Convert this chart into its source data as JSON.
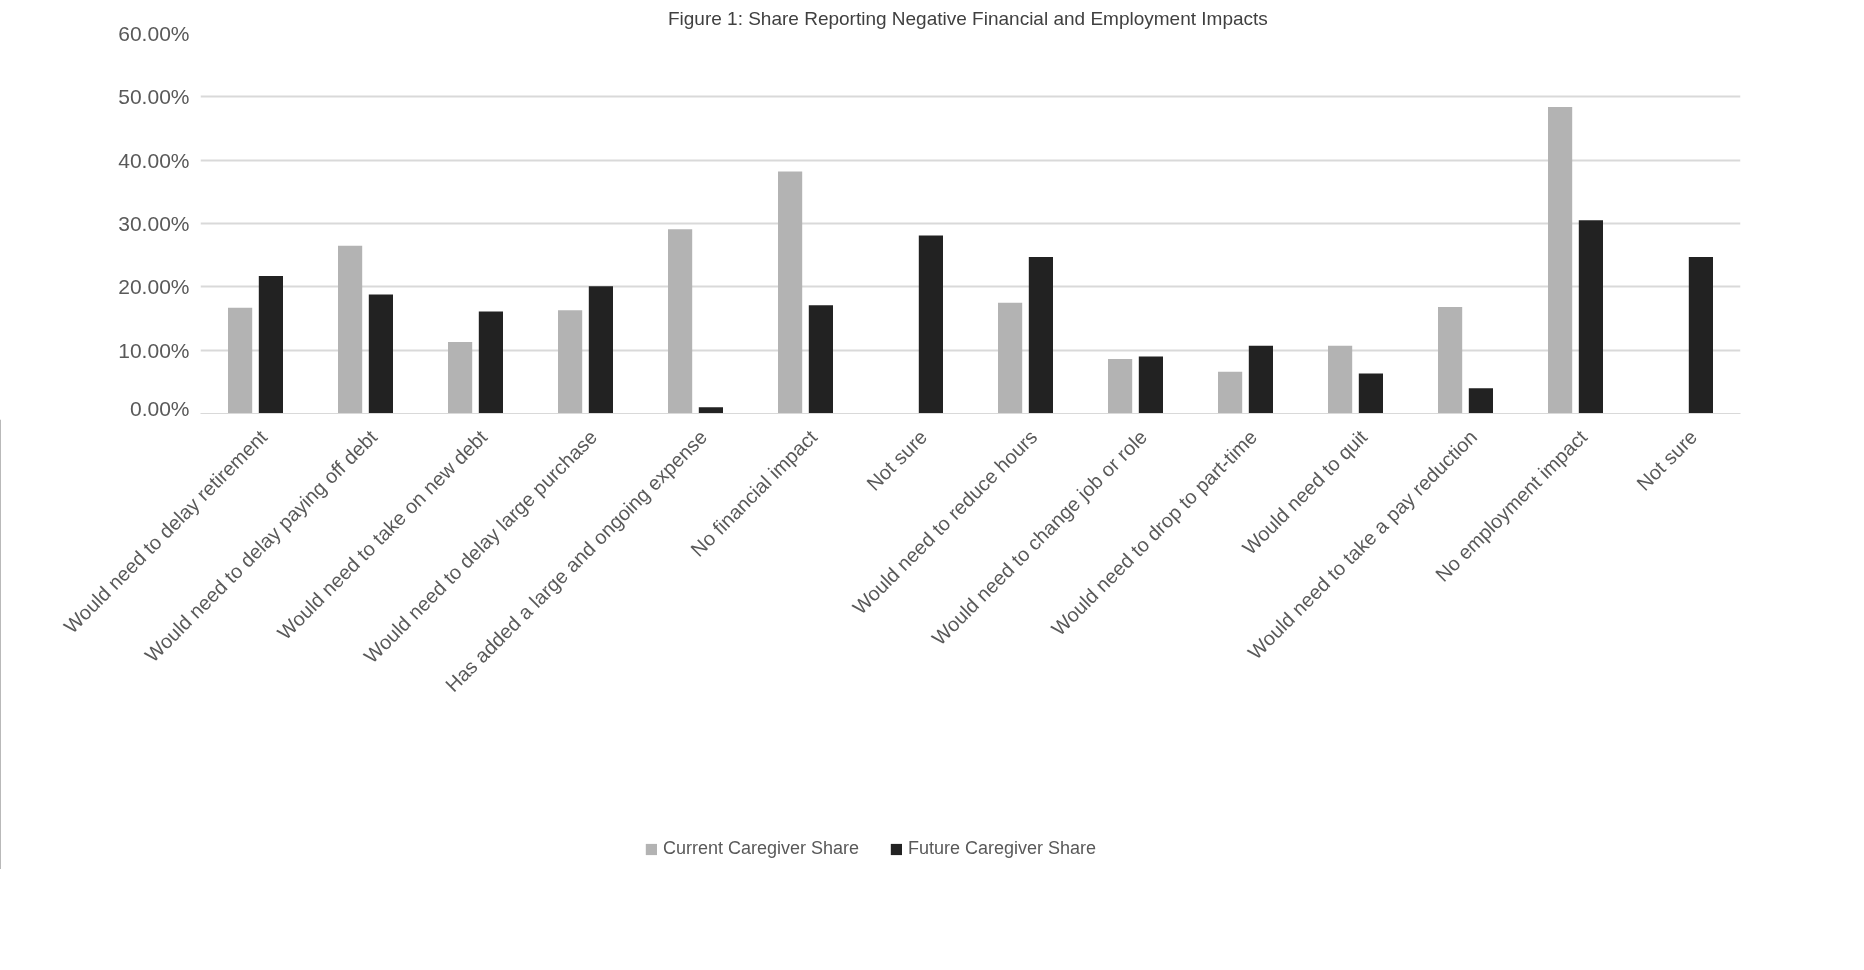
{
  "chart_data": {
    "type": "bar",
    "title": "Figure 1: Share Reporting Negative Financial and Employment  Impacts",
    "categories": [
      "Would need to delay retirement",
      "Would need to delay paying off debt",
      "Would need to take on new debt",
      "Would need to delay large purchase",
      "Has added a large and ongoing expense",
      "No financial impact",
      "Not sure",
      "Would need to reduce hours",
      "Would need to change job or role",
      "Would need to drop to part-time",
      "Would need to quit",
      "Would need to take a pay reduction",
      "No employment impact",
      "Not sure"
    ],
    "series": [
      {
        "name": "Current Caregiver Share",
        "color": "#b3b3b3",
        "values": [
          16.7,
          26.5,
          11.3,
          16.3,
          29.1,
          38.2,
          null,
          17.5,
          8.6,
          6.6,
          10.7,
          16.8,
          48.4,
          null
        ]
      },
      {
        "name": "Future Caregiver Share",
        "color": "#222222",
        "values": [
          21.7,
          18.8,
          16.1,
          20.1,
          1.0,
          17.1,
          28.1,
          24.7,
          9.0,
          10.7,
          6.3,
          4.0,
          30.5,
          24.7
        ]
      }
    ],
    "ylim": [
      0,
      60
    ],
    "yticks": [
      {
        "value": 0,
        "label": "0.00%"
      },
      {
        "value": 10,
        "label": "10.00%"
      },
      {
        "value": 20,
        "label": "20.00%"
      },
      {
        "value": 30,
        "label": "30.00%"
      },
      {
        "value": 40,
        "label": "40.00%"
      },
      {
        "value": 50,
        "label": "50.00%"
      },
      {
        "value": 60,
        "label": "60.00%"
      }
    ],
    "grid": "y",
    "legend": "bottom"
  }
}
